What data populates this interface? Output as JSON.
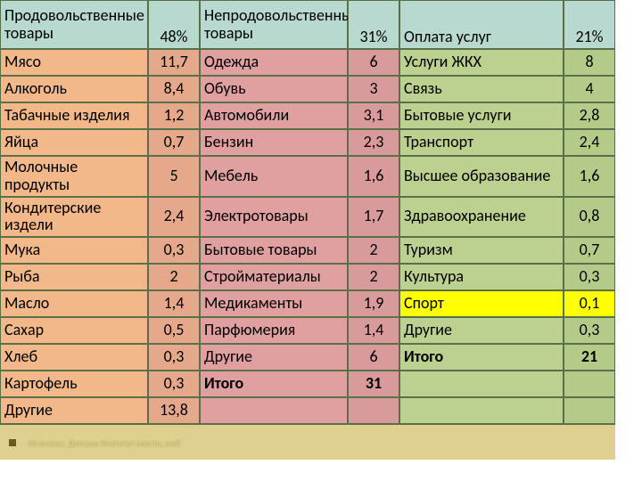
{
  "colors": {
    "header_bg": "#b8d9d0",
    "col1_bg": "#f2b889",
    "col2_bg": "#e5a88a",
    "col3_bg": "#e0a0a0",
    "col4_bg": "#d89a9a",
    "col5_bg": "#bcd090",
    "col6_bg": "#b4ca88",
    "highlight_bg": "#ffff00",
    "border": "#5a7048",
    "text": "#000000",
    "footer_bg": "#e0d090"
  },
  "header": {
    "food_label": "Продовольственные товары",
    "food_pct": "48%",
    "nonfood_label": "Непродовольственные товары",
    "nonfood_pct": "31%",
    "services_label": "Оплата услуг",
    "services_pct": "21%"
  },
  "rows": [
    {
      "c1": "Мясо",
      "v1": "11,7",
      "c2": "Одежда",
      "v2": "6",
      "c3": "Услуги ЖКХ",
      "v3": "8"
    },
    {
      "c1": "Алкоголь",
      "v1": "8,4",
      "c2": "Обувь",
      "v2": "3",
      "c3": "Связь",
      "v3": "4"
    },
    {
      "c1": "Табачные изделия",
      "v1": "1,2",
      "c2": "Автомобили",
      "v2": "3,1",
      "c3": "Бытовые услуги",
      "v3": "2,8"
    },
    {
      "c1": "Яйца",
      "v1": "0,7",
      "c2": "Бензин",
      "v2": "2,3",
      "c3": "Транспорт",
      "v3": "2,4"
    },
    {
      "c1": "Молочные продукты",
      "v1": "5",
      "c2": "Мебель",
      "v2": "1,6",
      "c3": "Высшее образование",
      "v3": "1,6"
    },
    {
      "c1": "Кондитерские издели",
      "v1": "2,4",
      "c2": "Электротовары",
      "v2": "1,7",
      "c3": "Здравоохранение",
      "v3": "0,8"
    },
    {
      "c1": "Мука",
      "v1": "0,3",
      "c2": "Бытовые товары",
      "v2": "2",
      "c3": "Туризм",
      "v3": "0,7"
    },
    {
      "c1": "Рыба",
      "v1": "2",
      "c2": "Стройматериалы",
      "v2": "2",
      "c3": "Культура",
      "v3": "0,3"
    },
    {
      "c1": "Масло",
      "v1": "1,4",
      "c2": "Медикаменты",
      "v2": "1,9",
      "c3": "Спорт",
      "v3": "0,1",
      "highlight": true
    },
    {
      "c1": "Сахар",
      "v1": "0,5",
      "c2": "Парфюмерия",
      "v2": "1,4",
      "c3": "Другие",
      "v3": "0,3"
    },
    {
      "c1": "Хлеб",
      "v1": "0,3",
      "c2": "Другие",
      "v2": "6",
      "c3": "Итого",
      "v3": "21",
      "bold3": true
    },
    {
      "c1": "Картофель",
      "v1": "0,3",
      "c2": "Итого",
      "v2": "31",
      "c3": "",
      "v3": "",
      "bold2": true
    },
    {
      "c1": "Другие",
      "v1": "13,8",
      "c2": "",
      "v2": "",
      "c3": "",
      "v3": ""
    }
  ],
  "footer_text": "Источник: Датские Институт власти, май"
}
